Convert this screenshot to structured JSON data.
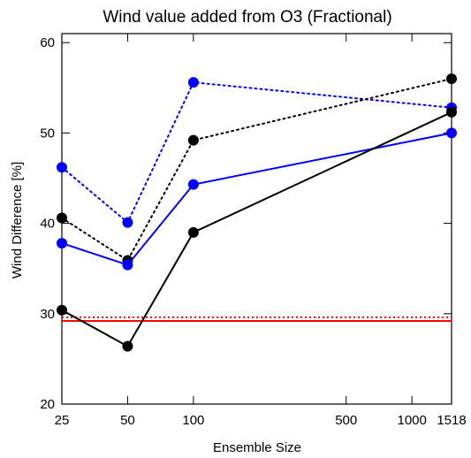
{
  "chart_data": {
    "type": "line",
    "title": "Wind value added from O3 (Fractional)",
    "xlabel": "Ensemble Size",
    "ylabel": "Wind Difference [%]",
    "x_scale": "log",
    "xlim": [
      25,
      1518
    ],
    "ylim": [
      20,
      61
    ],
    "x_ticks": [
      25,
      50,
      100,
      500,
      1000,
      1518
    ],
    "x_tick_labels": [
      "25",
      "50",
      "100",
      "500",
      "1000",
      "1518"
    ],
    "y_ticks": [
      20,
      30,
      40,
      50,
      60
    ],
    "y_tick_labels": [
      "20",
      "30",
      "40",
      "50",
      "60"
    ],
    "grid": false,
    "legend": "none",
    "x": [
      25,
      50,
      100,
      1518
    ],
    "series": [
      {
        "color": "#0000ff",
        "line_style": "dotted",
        "markers": true,
        "values": [
          46.2,
          40.1,
          55.6,
          52.8
        ]
      },
      {
        "color": "#000000",
        "line_style": "dotted",
        "markers": true,
        "values": [
          40.6,
          35.9,
          49.2,
          56.0
        ]
      },
      {
        "color": "#0000ff",
        "line_style": "solid",
        "markers": true,
        "values": [
          37.8,
          35.4,
          44.3,
          50.0
        ]
      },
      {
        "color": "#000000",
        "line_style": "solid",
        "markers": true,
        "values": [
          30.4,
          26.4,
          39.0,
          52.3
        ]
      }
    ],
    "reference_lines": [
      {
        "color": "#ff0000",
        "line_style": "dotted",
        "y": 29.6
      },
      {
        "color": "#ff0000",
        "line_style": "solid",
        "y": 29.2
      }
    ]
  }
}
